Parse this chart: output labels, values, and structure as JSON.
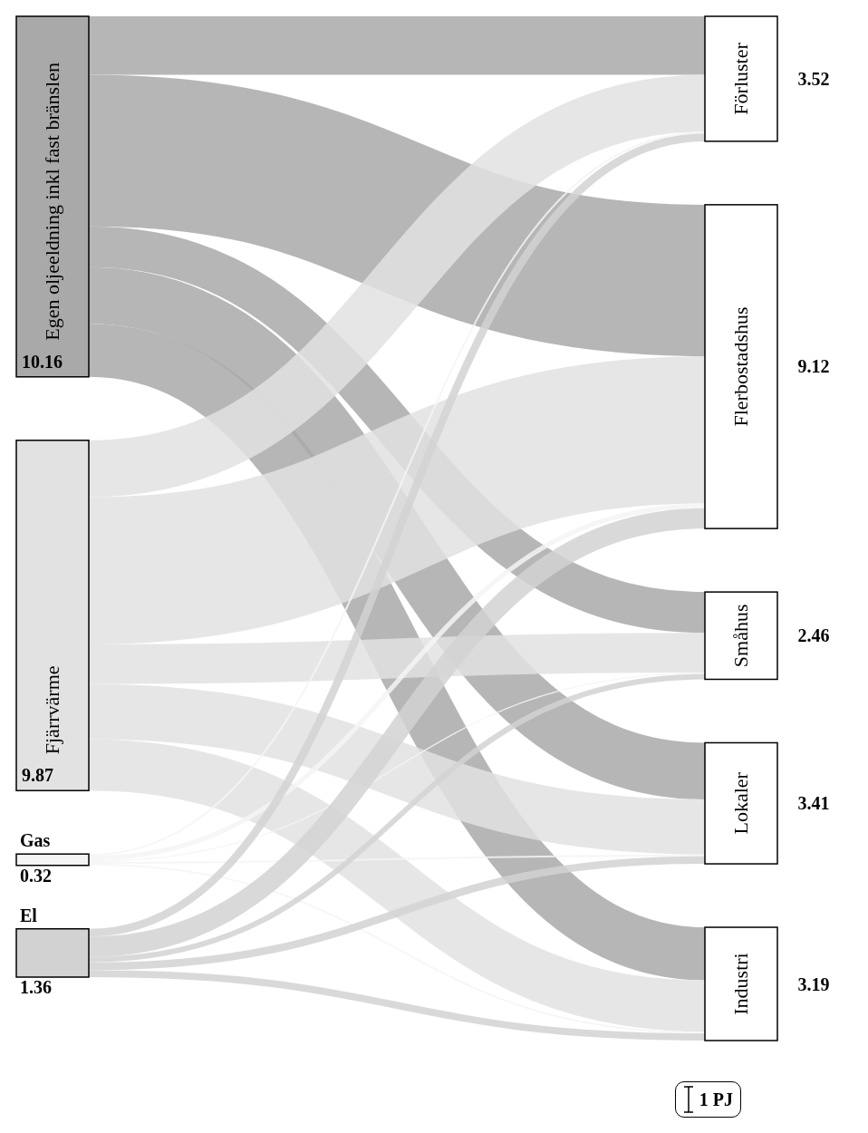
{
  "chart_data": {
    "type": "other",
    "categories": [
      "Egen oljeeldning inkl fast bränslen",
      "Fjärrvärme",
      "Gas",
      "El",
      "Förluster",
      "Flerbostadshus",
      "Småhus",
      "Lokaler",
      "Industri"
    ],
    "values": [
      10.16,
      9.87,
      0.32,
      1.36,
      3.52,
      9.12,
      2.46,
      3.41,
      3.19
    ],
    "colors": [
      "#a9a9a9",
      "#e2e2e2",
      "#f4f4f4",
      "#d2d2d2",
      "#ffffff",
      "#ffffff",
      "#ffffff",
      "#ffffff",
      "#ffffff"
    ],
    "data_labels": true,
    "annotations": [
      "1 PJ"
    ]
  }
}
